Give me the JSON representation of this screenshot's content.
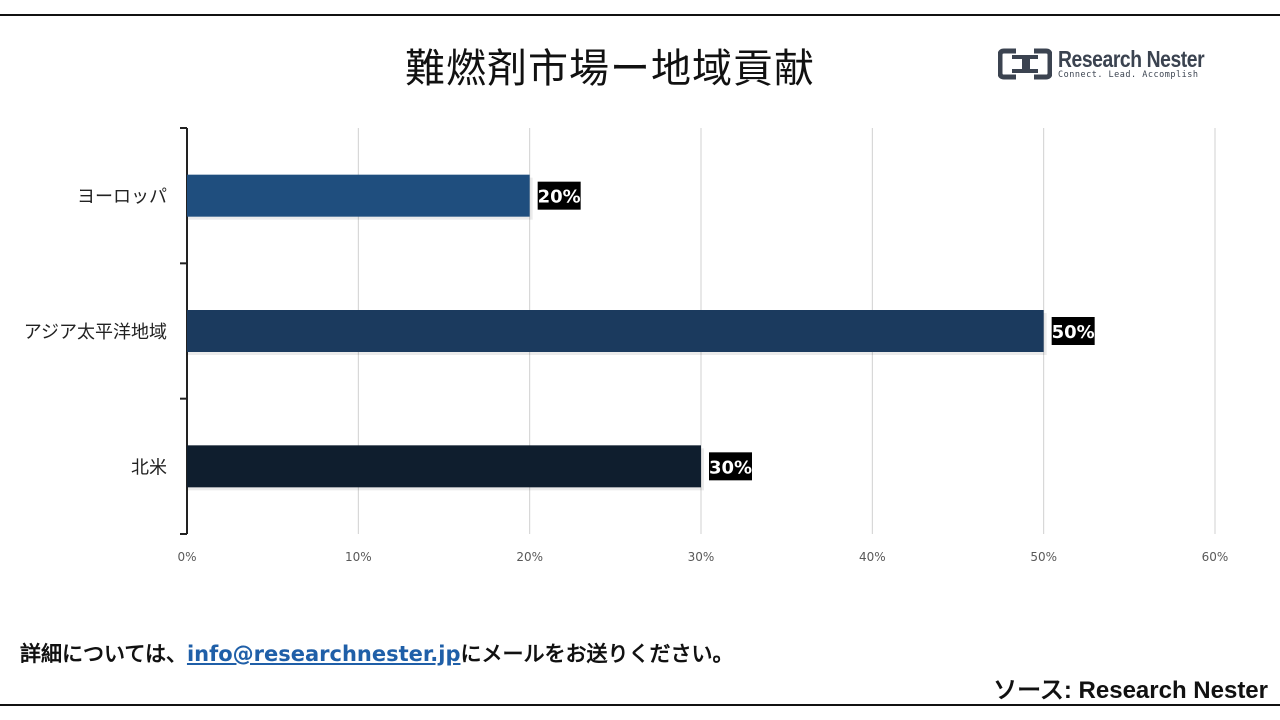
{
  "title": "難燃剤市場ー地域貢献",
  "logo": {
    "name": "Research Nester",
    "tagline": "Connect. Lead. Accomplish"
  },
  "footer": {
    "prefix": "詳細については、",
    "email": "info@researchnester.jp",
    "suffix": "にメールをお送りください。",
    "source": "ソース: Research Nester"
  },
  "colors": {
    "europe": "#1f4e7e",
    "apac": "#1b3a5e",
    "north_america": "#0f1e2e",
    "label_bg": "#000000",
    "grid": "#d0d0d0"
  },
  "chart_data": {
    "type": "bar",
    "orientation": "horizontal",
    "categories": [
      "ヨーロッパ",
      "アジア太平洋地域",
      "北米"
    ],
    "values": [
      20,
      50,
      30
    ],
    "data_labels": [
      "20%",
      "50%",
      "30%"
    ],
    "xlim": [
      0,
      60
    ],
    "xticks": [
      "0%",
      "10%",
      "20%",
      "30%",
      "40%",
      "50%",
      "60%"
    ],
    "grid": true,
    "legend": "none"
  }
}
